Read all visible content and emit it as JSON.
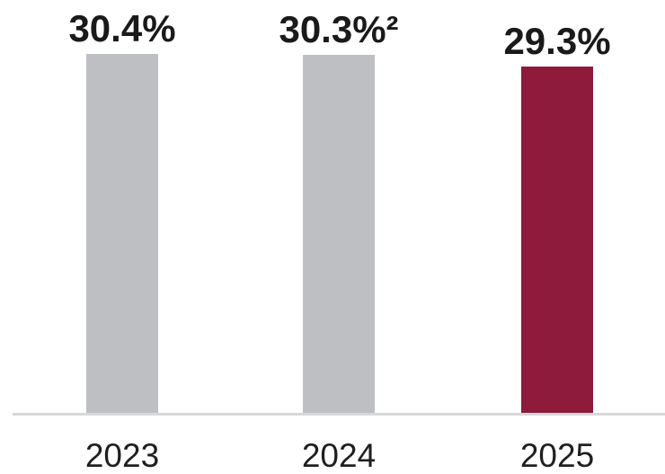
{
  "chart_data": {
    "type": "bar",
    "categories": [
      "2023",
      "2024",
      "2025"
    ],
    "values": [
      30.4,
      30.3,
      29.3
    ],
    "value_labels": [
      "30.4%",
      "30.3%²",
      "29.3%"
    ],
    "bar_colors": [
      "#BDBFC3",
      "#BDBFC3",
      "#8E1A3C"
    ],
    "title": "",
    "xlabel": "",
    "ylabel": "",
    "unit": "%",
    "ylim": [
      0,
      32
    ],
    "grid": false,
    "legend": false
  },
  "colors": {
    "background": "#FFFFFF",
    "bar_gray": "#BDBFC3",
    "bar_accent": "#8E1A3C",
    "baseline": "#D7D8DA",
    "label_text": "#1A1A1A",
    "axis_text": "#1F1F1F"
  }
}
